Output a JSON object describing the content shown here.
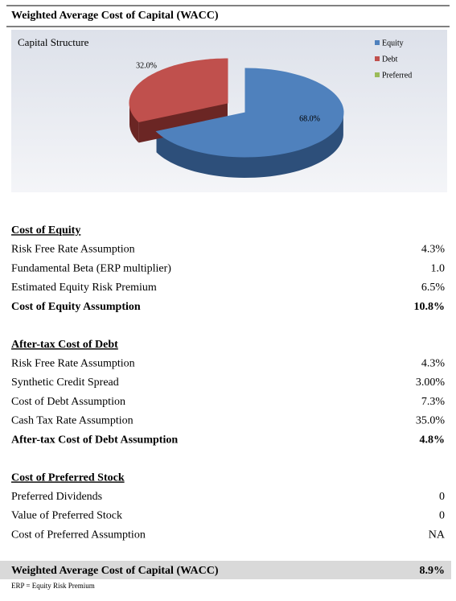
{
  "header": {
    "title": "Weighted Average Cost of Capital (WACC)"
  },
  "chart_data": {
    "type": "pie",
    "title": "Capital Structure",
    "categories": [
      "Equity",
      "Debt",
      "Preferred"
    ],
    "values": [
      68.0,
      32.0,
      0
    ],
    "value_labels": [
      "68.0%",
      "32.0%",
      null
    ],
    "colors": [
      "#4f81bd",
      "#c0504d",
      "#9bbb59"
    ],
    "legend": "right"
  },
  "sections": [
    {
      "heading": "Cost of Equity",
      "rows": [
        [
          "Risk Free Rate Assumption",
          "4.3%"
        ],
        [
          "Fundamental Beta (ERP multiplier)",
          "1.0"
        ],
        [
          "Estimated Equity Risk Premium",
          "6.5%"
        ]
      ],
      "total": [
        "Cost of Equity Assumption",
        "10.8%"
      ]
    },
    {
      "heading": "After-tax Cost of Debt",
      "rows": [
        [
          "Risk Free Rate Assumption",
          "4.3%"
        ],
        [
          "Synthetic Credit Spread",
          "3.00%"
        ],
        [
          "Cost of Debt Assumption",
          "7.3%"
        ],
        [
          "Cash Tax Rate Assumption",
          "35.0%"
        ]
      ],
      "total": [
        "After-tax Cost of Debt Assumption",
        "4.8%"
      ]
    },
    {
      "heading": "Cost of Preferred Stock",
      "rows": [
        [
          "Preferred Dividends",
          "0"
        ],
        [
          "Value of Preferred Stock",
          "0"
        ],
        [
          "Cost of Preferred Assumption",
          "NA"
        ]
      ]
    }
  ],
  "result": [
    "Weighted Average Cost of Capital (WACC)",
    "8.9%"
  ],
  "footnote": "ERP = Equity Risk Premium"
}
